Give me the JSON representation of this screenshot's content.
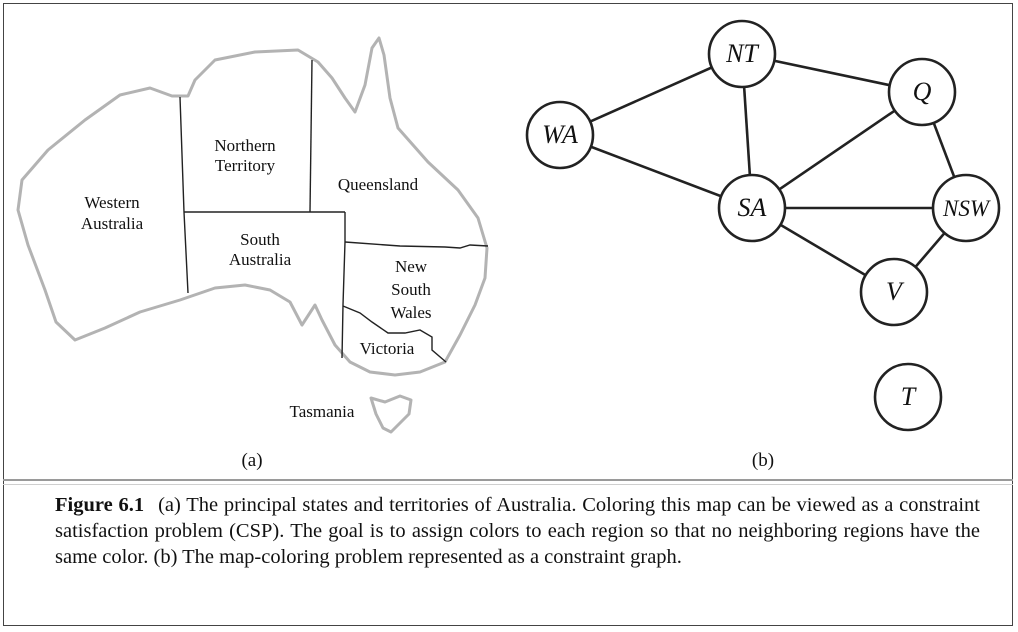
{
  "map": {
    "regions": [
      {
        "id": "wa",
        "lines": [
          "Western",
          "Australia"
        ]
      },
      {
        "id": "nt",
        "lines": [
          "Northern",
          "Territory"
        ]
      },
      {
        "id": "q",
        "lines": [
          "Queensland"
        ]
      },
      {
        "id": "sa",
        "lines": [
          "South",
          "Australia"
        ]
      },
      {
        "id": "nsw",
        "lines": [
          "New",
          "South",
          "Wales"
        ]
      },
      {
        "id": "v",
        "lines": [
          "Victoria"
        ]
      },
      {
        "id": "t",
        "lines": [
          "Tasmania"
        ]
      }
    ],
    "sublabel": "(a)"
  },
  "graph": {
    "nodes": [
      {
        "id": "NT",
        "label": "NT"
      },
      {
        "id": "Q",
        "label": "Q"
      },
      {
        "id": "WA",
        "label": "WA"
      },
      {
        "id": "SA",
        "label": "SA"
      },
      {
        "id": "NSW",
        "label": "NSW"
      },
      {
        "id": "V",
        "label": "V"
      },
      {
        "id": "T",
        "label": "T"
      }
    ],
    "edges": [
      [
        "WA",
        "NT"
      ],
      [
        "WA",
        "SA"
      ],
      [
        "NT",
        "SA"
      ],
      [
        "NT",
        "Q"
      ],
      [
        "SA",
        "Q"
      ],
      [
        "SA",
        "NSW"
      ],
      [
        "SA",
        "V"
      ],
      [
        "Q",
        "NSW"
      ],
      [
        "NSW",
        "V"
      ]
    ],
    "sublabel": "(b)"
  },
  "caption": {
    "label": "Figure 6.1",
    "text": "(a) The principal states and territories of Australia.  Coloring this map can be viewed as a constraint satisfaction problem (CSP). The goal is to assign colors to each region so that no neighboring regions have the same color.  (b) The map-coloring problem represented as a constraint graph."
  }
}
